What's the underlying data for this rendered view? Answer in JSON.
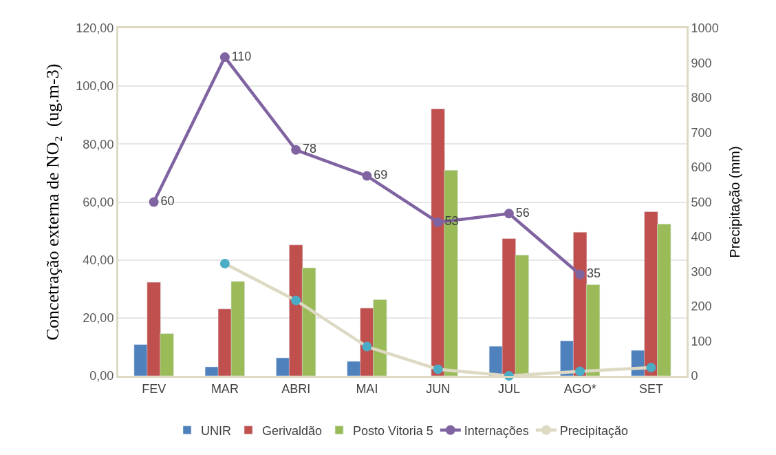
{
  "chart_data": {
    "type": "bar",
    "categories": [
      "FEV",
      "MAR",
      "ABRI",
      "MAI",
      "JUN",
      "JUL",
      "AGO*",
      "SET"
    ],
    "ylabel": "Concetração externa de NO₂  (ug.m-3)",
    "y2label": "Precipitação (mm)",
    "series": [
      {
        "name": "UNIR",
        "color": "#4f81bd",
        "values": [
          10.8,
          3.1,
          6.2,
          5.0,
          null,
          10.2,
          12.1,
          8.8
        ]
      },
      {
        "name": "Gerivaldão",
        "color": "#c0504d",
        "values": [
          32.3,
          23.1,
          45.2,
          23.4,
          92.2,
          47.4,
          49.6,
          56.7
        ]
      },
      {
        "name": "Posto Vitoria 5",
        "color": "#9bbb59",
        "values": [
          14.6,
          32.6,
          37.3,
          26.3,
          71.0,
          41.7,
          31.5,
          52.4
        ]
      },
      {
        "name": "Internações",
        "type": "line",
        "color": "#8064a2",
        "marker": "circle",
        "values": [
          60,
          110,
          78,
          69,
          53,
          56,
          35,
          null
        ],
        "value_labels": [
          "60",
          "110",
          "78",
          "69",
          "53",
          "56",
          "35",
          null
        ]
      },
      {
        "name": "Precipitação",
        "type": "line",
        "axis": "y2",
        "color": "#ddd9c3",
        "colors": [
          null,
          "#4bacc6",
          "#4bacc6",
          "#4bacc6",
          "#4bacc6",
          "#4bacc6",
          "#4bacc6",
          "#4bacc6"
        ],
        "marker": "circle",
        "values": [
          null,
          323,
          217,
          84,
          19,
          0,
          13,
          24
        ]
      }
    ],
    "ylim": [
      0,
      120
    ],
    "yticks": [
      {
        "value": 0,
        "label": "0,00"
      },
      {
        "value": 20,
        "label": "20,00"
      },
      {
        "value": 40,
        "label": "40,00"
      },
      {
        "value": 60,
        "label": "60,00"
      },
      {
        "value": 80,
        "label": "80,00"
      },
      {
        "value": 100,
        "label": "100,00"
      },
      {
        "value": 120,
        "label": "120,00"
      }
    ],
    "y2lim": [
      0,
      1000
    ],
    "y2ticks": [
      0,
      100,
      200,
      300,
      400,
      500,
      600,
      700,
      800,
      900,
      1000
    ],
    "grid": "y",
    "legend": "bottom"
  }
}
